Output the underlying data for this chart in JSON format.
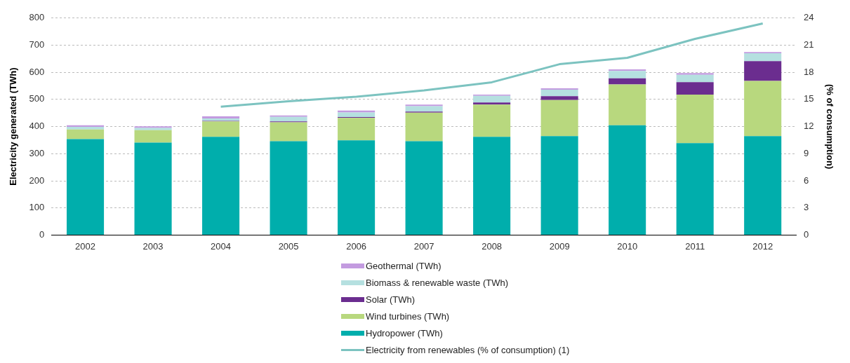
{
  "chart_data": {
    "type": "bar",
    "stacked": true,
    "ylabel": "Electricity generated (TWh)",
    "y2label": "(% of consumption)",
    "categories": [
      "2002",
      "2003",
      "2004",
      "2005",
      "2006",
      "2007",
      "2008",
      "2009",
      "2010",
      "2011",
      "2012"
    ],
    "series": [
      {
        "name": "Hydropower (TWh)",
        "color": "#00aeac",
        "values": [
          354,
          341,
          362,
          346,
          349,
          346,
          362,
          365,
          405,
          339,
          365
        ]
      },
      {
        "name": "Wind turbines (TWh)",
        "color": "#b8d87e",
        "values": [
          35,
          46,
          57,
          70,
          83,
          105,
          119,
          133,
          150,
          179,
          203
        ]
      },
      {
        "name": "Solar (TWh)",
        "color": "#6b2d8f",
        "values": [
          null,
          null,
          2,
          3,
          3,
          4,
          8,
          14,
          23,
          46,
          73
        ]
      },
      {
        "name": "Biomass & renewable waste (TWh)",
        "color": "#b5e0e0",
        "values": [
          10,
          8,
          9,
          17,
          17,
          20,
          24,
          24,
          27,
          27,
          29
        ]
      },
      {
        "name": "Geothermal (TWh)",
        "color": "#c39be0",
        "values": [
          6,
          6,
          8,
          5,
          7,
          6,
          5,
          5,
          6,
          6,
          5
        ]
      },
      {
        "name": "Electricity from renewables (% of consumption) (1)",
        "type": "line",
        "axis": "y2",
        "color": "#7cc3c0",
        "values": [
          null,
          null,
          14.2,
          14.8,
          15.3,
          16.0,
          16.9,
          18.9,
          19.6,
          21.7,
          23.4
        ]
      }
    ],
    "ylim": [
      0,
      800
    ],
    "yticks": [
      0,
      100,
      200,
      300,
      400,
      500,
      600,
      700,
      800
    ],
    "y2lim": [
      0,
      24
    ],
    "y2ticks": [
      0,
      3,
      6,
      9,
      12,
      15,
      18,
      21,
      24
    ],
    "grid": "y",
    "legend": "bottom",
    "marker": "none",
    "line_style": "solid"
  }
}
